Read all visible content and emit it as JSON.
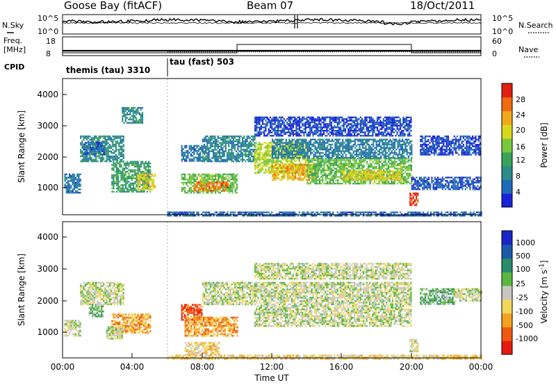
{
  "header": {
    "station": "Goose Bay (fitACF)",
    "beam": "Beam 07",
    "date": "18/Oct/2011"
  },
  "panels": {
    "noise": {
      "left_label": "N.Sky",
      "left_ticks": [
        "10^5",
        "10^0"
      ],
      "right_label": "N.Search",
      "right_ticks": [
        "10^5",
        "10^0"
      ]
    },
    "freq": {
      "left_label_1": "Freq.",
      "left_label_2": "[MHz]",
      "left_ticks": [
        "18",
        "8"
      ],
      "right_label": "Nave",
      "right_ticks": [
        "60",
        "0"
      ]
    },
    "cpid": {
      "label": "CPID",
      "segments": [
        "themis (tau) 3310",
        "tau (fast) 503"
      ]
    }
  },
  "x_axis": {
    "label": "Time UT",
    "tick_labels": [
      "00:00",
      "04:00",
      "08:00",
      "12:00",
      "16:00",
      "20:00",
      "00:00"
    ]
  },
  "chart_data": [
    {
      "type": "heatmap",
      "name": "power",
      "ylabel": "Slant Range [km]",
      "y_ticks": [
        "1000",
        "2000",
        "3000",
        "4000"
      ],
      "ylim": [
        200,
        4500
      ],
      "xlim_hours": [
        0,
        24
      ],
      "colorbar_label": "Power [dB]",
      "colorbar_ticks": [
        "4",
        "8",
        "12",
        "16",
        "20",
        "24",
        "28"
      ],
      "colorbar_range": [
        0,
        30
      ],
      "colors": [
        "#1a24d8",
        "#1f6ab8",
        "#2c8a8a",
        "#3aa35a",
        "#78c83a",
        "#d8d81a",
        "#f0a81a",
        "#f06a10",
        "#e02010"
      ],
      "regions": [
        {
          "t0": 0.1,
          "t1": 1.0,
          "r0": 900,
          "r1": 1500,
          "val": 6
        },
        {
          "t0": 1.0,
          "t1": 3.5,
          "r0": 1900,
          "r1": 2700,
          "val": 9
        },
        {
          "t0": 1.2,
          "t1": 2.4,
          "r0": 2100,
          "r1": 2500,
          "val": 5
        },
        {
          "t0": 2.8,
          "t1": 5.0,
          "r0": 900,
          "r1": 1900,
          "val": 11
        },
        {
          "t0": 4.3,
          "t1": 5.3,
          "r0": 1000,
          "r1": 1500,
          "val": 19
        },
        {
          "t0": 3.4,
          "t1": 4.6,
          "r0": 3100,
          "r1": 3600,
          "val": 8
        },
        {
          "t0": 6.8,
          "t1": 10.0,
          "r0": 900,
          "r1": 1500,
          "val": 14
        },
        {
          "t0": 7.5,
          "t1": 9.5,
          "r0": 950,
          "r1": 1250,
          "val": 24
        },
        {
          "t0": 6.8,
          "t1": 8.0,
          "r0": 1900,
          "r1": 2400,
          "val": 6
        },
        {
          "t0": 8.0,
          "t1": 11.0,
          "r0": 1900,
          "r1": 2700,
          "val": 8
        },
        {
          "t0": 11.0,
          "t1": 14.0,
          "r0": 1500,
          "r1": 2500,
          "val": 17
        },
        {
          "t0": 12.0,
          "t1": 14.5,
          "r0": 1300,
          "r1": 1800,
          "val": 21
        },
        {
          "t0": 14.0,
          "t1": 20.0,
          "r0": 1200,
          "r1": 2000,
          "val": 14
        },
        {
          "t0": 16.0,
          "t1": 19.5,
          "r0": 1300,
          "r1": 1600,
          "val": 19
        },
        {
          "t0": 12.0,
          "t1": 20.0,
          "r0": 2000,
          "r1": 2600,
          "val": 7
        },
        {
          "t0": 11.0,
          "t1": 20.0,
          "r0": 2700,
          "r1": 3300,
          "val": 3
        },
        {
          "t0": 19.9,
          "t1": 20.4,
          "r0": 500,
          "r1": 900,
          "val": 28
        },
        {
          "t0": 20.0,
          "t1": 24.0,
          "r0": 1000,
          "r1": 1400,
          "val": 4
        },
        {
          "t0": 20.5,
          "t1": 24.0,
          "r0": 2100,
          "r1": 2700,
          "val": 3
        },
        {
          "t0": 6.0,
          "t1": 24.0,
          "r0": 180,
          "r1": 300,
          "val": 5
        }
      ]
    },
    {
      "type": "heatmap",
      "name": "velocity",
      "ylabel": "Slant Range [km]",
      "y_ticks": [
        "1000",
        "2000",
        "3000",
        "4000"
      ],
      "ylim": [
        200,
        4500
      ],
      "xlim_hours": [
        0,
        24
      ],
      "colorbar_label": "Velocity [m s^-1]",
      "colorbar_ticks": [
        "-1000",
        "-500",
        "-100",
        "-25",
        "25",
        "100",
        "500",
        "1000"
      ],
      "colors": [
        "#e81a10",
        "#f05a10",
        "#f4a020",
        "#f2d85a",
        "#c8c8c0",
        "#5ab840",
        "#2a8a6a",
        "#1a5aa8",
        "#1a24c8"
      ],
      "regions": [
        {
          "t0": 0.1,
          "t1": 1.0,
          "r0": 900,
          "r1": 1400,
          "val": 4
        },
        {
          "t0": 1.0,
          "t1": 3.5,
          "r0": 1900,
          "r1": 2600,
          "val": 4
        },
        {
          "t0": 1.5,
          "t1": 2.3,
          "r0": 1500,
          "r1": 1900,
          "val": 5
        },
        {
          "t0": 2.8,
          "t1": 5.0,
          "r0": 1000,
          "r1": 1600,
          "val": 2
        },
        {
          "t0": 2.5,
          "t1": 3.5,
          "r0": 800,
          "r1": 1200,
          "val": 4
        },
        {
          "t0": 6.8,
          "t1": 8.0,
          "r0": 1400,
          "r1": 1900,
          "val": 1
        },
        {
          "t0": 7.0,
          "t1": 10.0,
          "r0": 900,
          "r1": 1500,
          "val": 2
        },
        {
          "t0": 7.0,
          "t1": 9.0,
          "r0": 300,
          "r1": 700,
          "val": 3
        },
        {
          "t0": 8.0,
          "t1": 11.0,
          "r0": 1900,
          "r1": 2600,
          "val": 4
        },
        {
          "t0": 11.0,
          "t1": 20.0,
          "r0": 1200,
          "r1": 2600,
          "val": 4
        },
        {
          "t0": 11.0,
          "t1": 20.0,
          "r0": 2700,
          "r1": 3200,
          "val": 4
        },
        {
          "t0": 19.9,
          "t1": 20.4,
          "r0": 400,
          "r1": 800,
          "val": 4
        },
        {
          "t0": 20.5,
          "t1": 22.5,
          "r0": 1900,
          "r1": 2400,
          "val": 5
        },
        {
          "t0": 22.5,
          "t1": 24.0,
          "r0": 2000,
          "r1": 2400,
          "val": 4
        },
        {
          "t0": 6.0,
          "t1": 24.0,
          "r0": 180,
          "r1": 300,
          "val": 3
        }
      ]
    }
  ]
}
